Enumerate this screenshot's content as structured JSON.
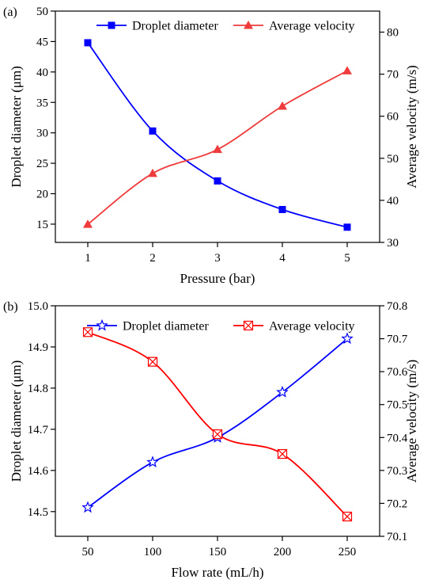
{
  "chart_data": [
    {
      "panel_label": "(a)",
      "type": "line",
      "x": [
        1,
        2,
        3,
        4,
        5
      ],
      "xticks": [
        "1",
        "2",
        "3",
        "4",
        "5"
      ],
      "xlabel": "Pressure (bar)",
      "xlim": [
        0.5,
        5.5
      ],
      "ylabel_left": "Droplet diameter (μm)",
      "ylabel_right": "Average velocity (m/s)",
      "ylim_left": [
        12,
        50
      ],
      "ylim_right": [
        30,
        85
      ],
      "yticks_left": [
        15,
        20,
        25,
        30,
        35,
        40,
        45,
        50
      ],
      "yticks_right": [
        30,
        40,
        50,
        60,
        70,
        80
      ],
      "legend_position": "top",
      "grid": false,
      "series": [
        {
          "name": "Droplet diameter",
          "axis": "left",
          "color": "#0000ff",
          "marker": "filled-square",
          "values": [
            44.8,
            30.3,
            22.1,
            17.4,
            14.5
          ]
        },
        {
          "name": "Average velocity",
          "axis": "right",
          "color": "#ef3b3b",
          "marker": "filled-triangle",
          "values": [
            34.3,
            46.4,
            52.1,
            62.4,
            70.8
          ]
        }
      ]
    },
    {
      "panel_label": "(b)",
      "type": "line",
      "x": [
        50,
        100,
        150,
        200,
        250
      ],
      "xticks": [
        "50",
        "100",
        "150",
        "200",
        "250"
      ],
      "xlabel": "Flow rate  (mL/h)",
      "xlim": [
        25,
        275
      ],
      "ylabel_left": "Droplet diameter (μm)",
      "ylabel_right": "Average velocity (m/s)",
      "ylim_left": [
        14.44,
        15.0
      ],
      "ylim_right": [
        70.1,
        70.8
      ],
      "yticks_left": [
        14.5,
        14.6,
        14.7,
        14.8,
        14.9,
        15.0
      ],
      "yticks_right": [
        70.1,
        70.2,
        70.3,
        70.4,
        70.5,
        70.6,
        70.7,
        70.8
      ],
      "ytick_labels_left": [
        "14.5",
        "14.6",
        "14.7",
        "14.8",
        "14.9",
        "15.0"
      ],
      "ytick_labels_right": [
        "70.1",
        "70.2",
        "70.3",
        "70.4",
        "70.5",
        "70.6",
        "70.7",
        "70.8"
      ],
      "legend_position": "top",
      "grid": false,
      "series": [
        {
          "name": "Droplet diameter",
          "axis": "left",
          "color": "#0000ff",
          "marker": "open-star",
          "values": [
            14.51,
            14.62,
            14.68,
            14.79,
            14.92
          ]
        },
        {
          "name": "Average velocity",
          "axis": "right",
          "color": "#ff0000",
          "marker": "box-x",
          "values": [
            70.72,
            70.63,
            70.41,
            70.35,
            70.16
          ]
        }
      ]
    }
  ]
}
